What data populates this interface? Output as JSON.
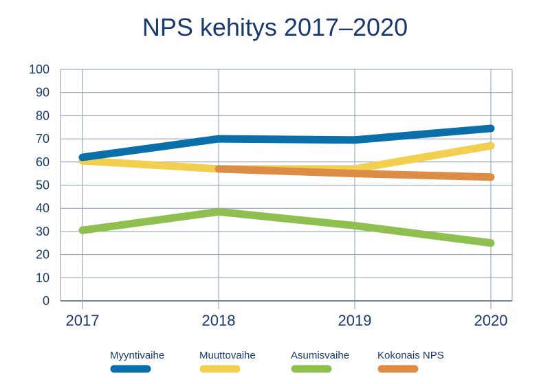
{
  "chart_data": {
    "type": "line",
    "title": "NPS kehitys 2017–2020",
    "xlabel": "",
    "ylabel": "",
    "x": [
      "2017",
      "2018",
      "2019",
      "2020"
    ],
    "ylim": [
      0,
      100
    ],
    "yticks": [
      0,
      10,
      20,
      30,
      40,
      50,
      60,
      70,
      80,
      90,
      100
    ],
    "grid": true,
    "legend_position": "bottom",
    "series": [
      {
        "name": "Myyntivaihe",
        "color": "#0a6fa8",
        "values": [
          62,
          70,
          69.5,
          74.5
        ]
      },
      {
        "name": "Muuttovaihe",
        "color": "#f2cf4f",
        "values": [
          60.5,
          57,
          57,
          67
        ]
      },
      {
        "name": "Asumisvaihe",
        "color": "#8fbf4f",
        "values": [
          30.5,
          38.5,
          32.5,
          25
        ]
      },
      {
        "name": "Kokonais NPS",
        "color": "#dd8c45",
        "values": [
          null,
          57,
          55,
          53.5
        ]
      }
    ]
  }
}
